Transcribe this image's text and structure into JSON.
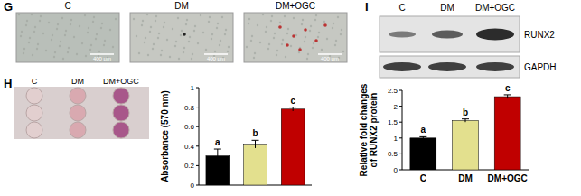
{
  "chart_data": [
    {
      "type": "bar",
      "y_label": [
        "Absorbance (570 nm)"
      ],
      "categories": [
        null,
        null,
        null
      ],
      "values": [
        0.3,
        0.42,
        0.78
      ],
      "errors": [
        0.07,
        0.04,
        0.02
      ],
      "colors": [
        "#000000",
        "#e3e08e",
        "#c00000"
      ],
      "annotations": [
        "a",
        "b",
        "c"
      ],
      "ylim": [
        0,
        1
      ],
      "yticks": [
        0,
        0.2,
        0.4,
        0.6,
        0.8,
        1
      ]
    },
    {
      "type": "bar",
      "y_label": [
        "Relative fold changes",
        "of RUNX2 protein"
      ],
      "categories": [
        "C",
        "DM",
        "DM+OGC"
      ],
      "values": [
        1.0,
        1.55,
        2.3
      ],
      "errors": [
        0.04,
        0.05,
        0.06
      ],
      "colors": [
        "#000000",
        "#e3e08e",
        "#c00000"
      ],
      "annotations": [
        "a",
        "b",
        "c"
      ],
      "ylim": [
        0,
        2.5
      ],
      "yticks": [
        0,
        0.5,
        1,
        1.5,
        2,
        2.5
      ]
    }
  ],
  "panels": {
    "letters": [
      "G",
      "H",
      "I"
    ],
    "G": {
      "columns": [
        "C",
        "DM",
        "DM+OGC"
      ],
      "scale_bar": "400 μm"
    },
    "H": {
      "columns": [
        "C",
        "DM",
        "DM+OGC"
      ]
    },
    "I": {
      "columns": [
        "C",
        "DM",
        "DM+OGC"
      ],
      "bands": [
        "RUNX2",
        "GAPDH"
      ]
    }
  }
}
